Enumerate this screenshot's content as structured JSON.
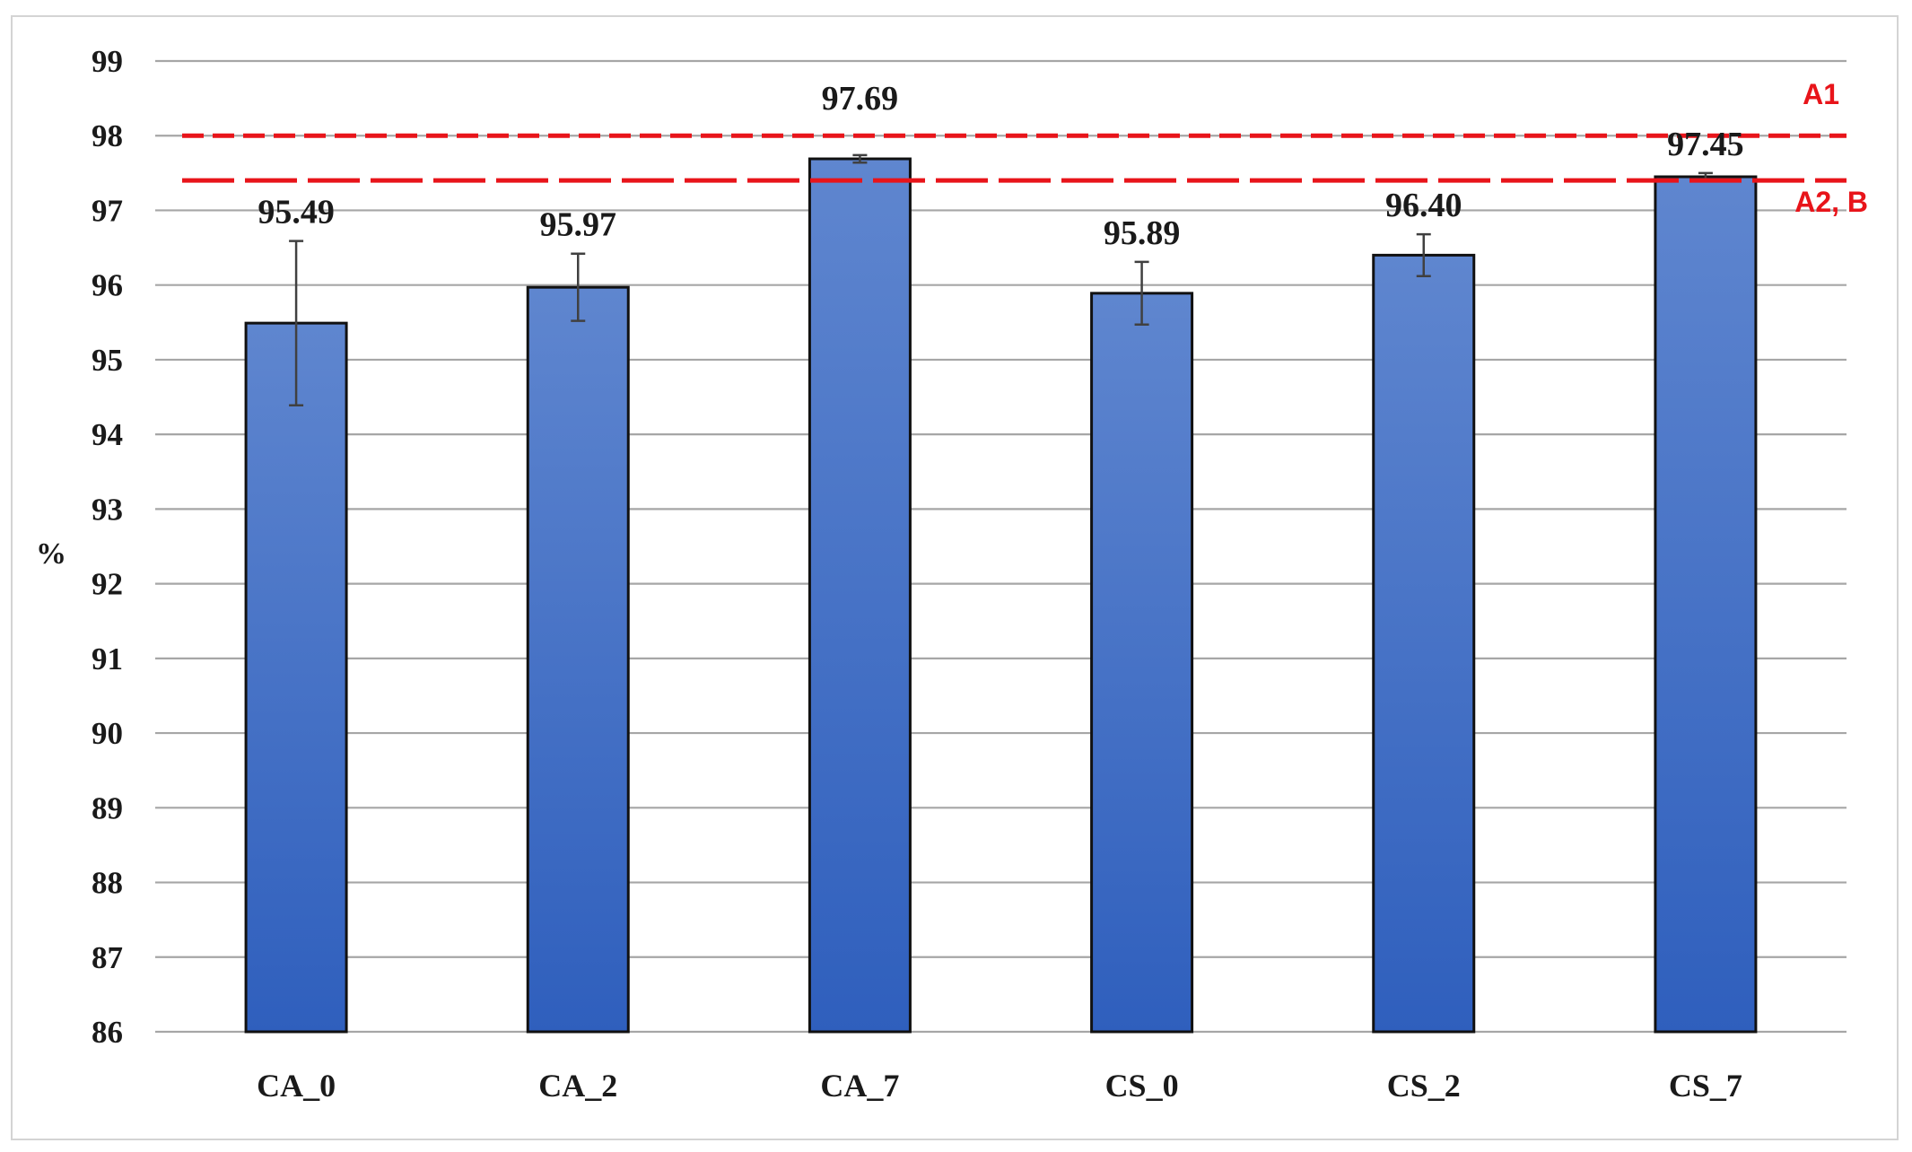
{
  "chart_data": {
    "type": "bar",
    "categories": [
      "CA_0",
      "CA_2",
      "CA_7",
      "CS_0",
      "CS_2",
      "CS_7"
    ],
    "values": [
      95.49,
      95.97,
      97.69,
      95.89,
      96.4,
      97.45
    ],
    "value_labels": [
      "95.49",
      "95.97",
      "97.69",
      "95.89",
      "96.40",
      "97.45"
    ],
    "error_bars": [
      1.1,
      0.45,
      0.05,
      0.42,
      0.28,
      0.05
    ],
    "ylabel": "%",
    "ylim": [
      86,
      99
    ],
    "yticks": [
      86,
      87,
      88,
      89,
      90,
      91,
      92,
      93,
      94,
      95,
      96,
      97,
      98,
      99
    ],
    "grid": true,
    "reference_lines": [
      {
        "label": "A1",
        "value": 98.0,
        "style": "short-dash"
      },
      {
        "label": "A2, B",
        "value": 97.4,
        "style": "long-dash"
      }
    ],
    "colors": {
      "bar_top": "#5f86cf",
      "bar_bottom": "#2f5fbd",
      "bar_outline": "#111111",
      "reference": "#e8141a",
      "grid": "#a6a6a6",
      "error_bar": "#404040"
    }
  }
}
